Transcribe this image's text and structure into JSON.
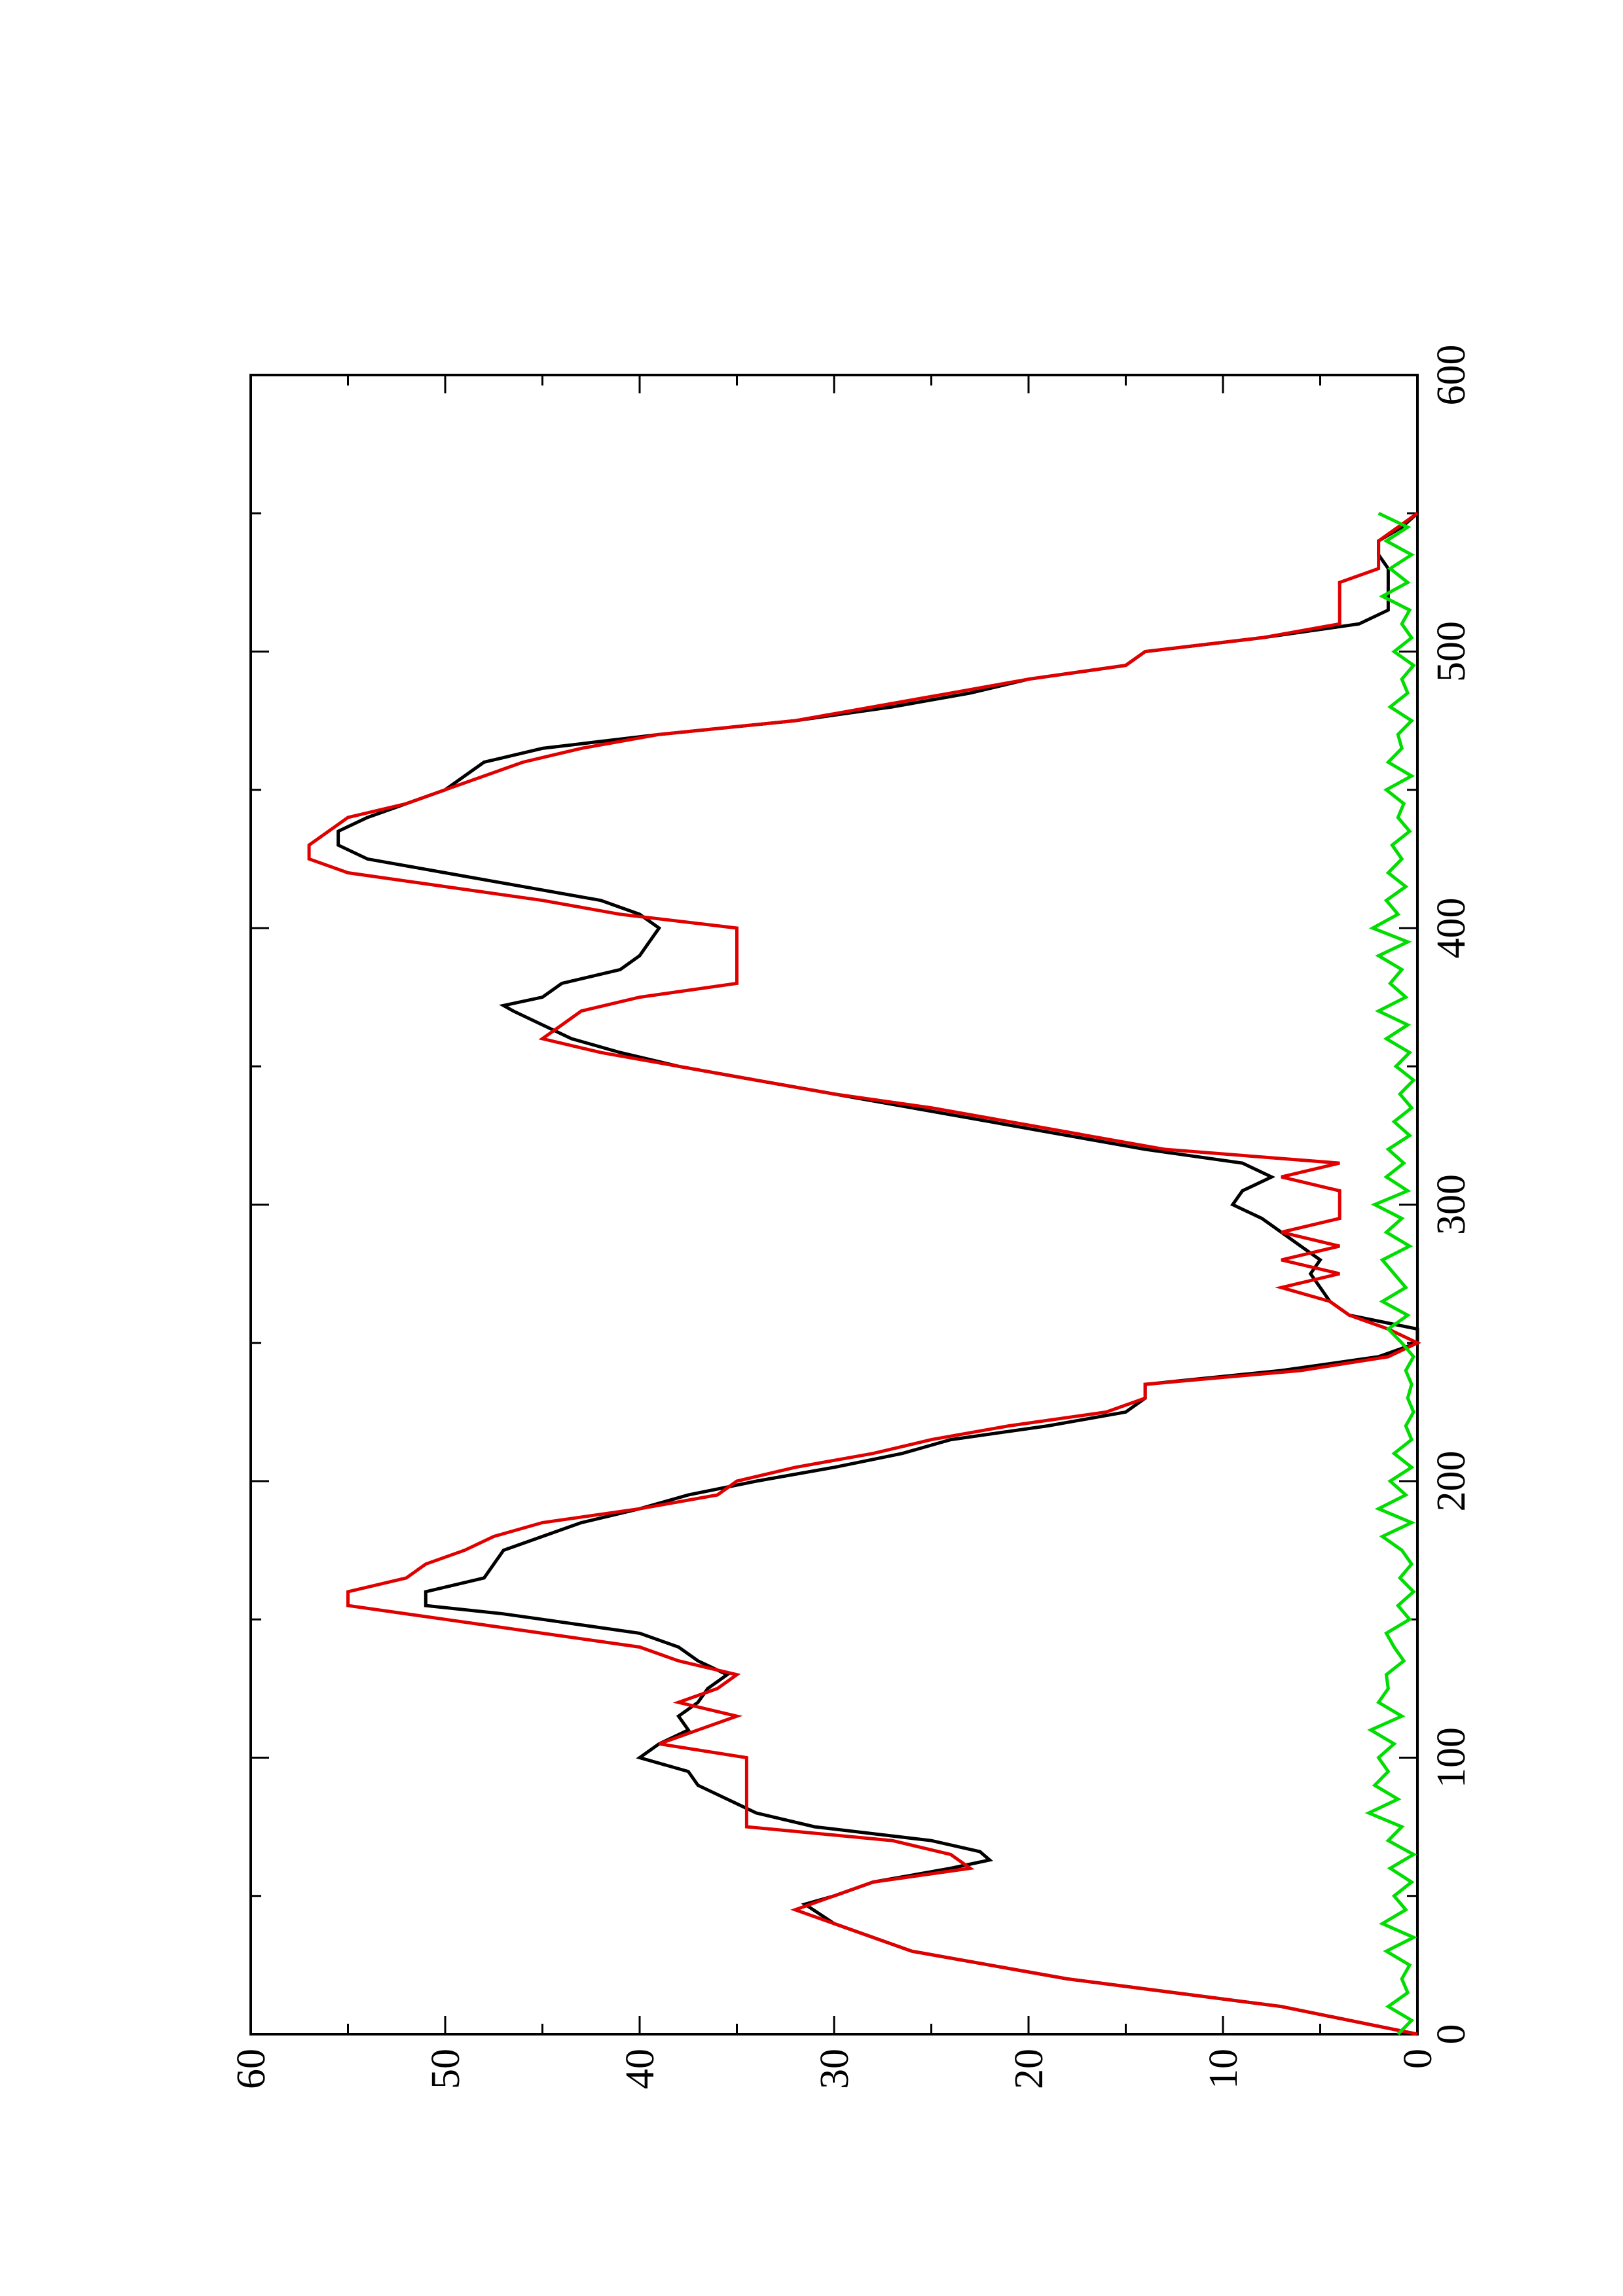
{
  "chart_data": {
    "type": "line",
    "title": "",
    "xlabel": "",
    "ylabel": "",
    "orientation": "rotated-90-counterclockwise",
    "xlim": [
      0,
      600
    ],
    "ylim": [
      0,
      60
    ],
    "x_ticks": [
      0,
      100,
      200,
      300,
      400,
      500,
      600
    ],
    "x_tick_labels": [
      "0",
      "100",
      "200",
      "300",
      "400",
      "500",
      "600"
    ],
    "x_minor_ticks": [
      50,
      150,
      250,
      350,
      450,
      550
    ],
    "y_ticks": [
      0,
      10,
      20,
      30,
      40,
      50,
      60
    ],
    "y_tick_labels": [
      "0",
      "10",
      "20",
      "30",
      "40",
      "50",
      "60"
    ],
    "y_minor_ticks": [
      5,
      15,
      25,
      35,
      45,
      55
    ],
    "grid": false,
    "legend": "none",
    "series": [
      {
        "color": "#000000",
        "x": [
          0,
          10,
          20,
          30,
          40,
          47,
          50,
          55,
          60,
          63,
          66,
          70,
          75,
          80,
          85,
          90,
          95,
          100,
          105,
          110,
          115,
          120,
          125,
          130,
          135,
          140,
          145,
          150,
          152,
          155,
          160,
          165,
          170,
          175,
          180,
          185,
          190,
          195,
          200,
          205,
          210,
          215,
          220,
          225,
          230,
          235,
          240,
          245,
          250,
          255,
          260,
          265,
          270,
          275,
          280,
          285,
          290,
          295,
          300,
          305,
          310,
          315,
          320,
          325,
          330,
          335,
          340,
          345,
          350,
          355,
          360,
          365,
          370,
          372,
          375,
          380,
          385,
          390,
          395,
          400,
          405,
          410,
          415,
          420,
          425,
          430,
          435,
          440,
          445,
          450,
          455,
          460,
          465,
          470,
          475,
          480,
          485,
          490,
          495,
          500,
          505,
          510,
          515,
          520,
          525,
          530,
          535,
          540,
          545,
          550
        ],
        "y": [
          0,
          7,
          18,
          26,
          30,
          31.5,
          30,
          28,
          24,
          22,
          22.5,
          25,
          31,
          34,
          35.5,
          37,
          37.5,
          40,
          39,
          37.5,
          38,
          37,
          36.5,
          35.5,
          37,
          38,
          40,
          45,
          47,
          51,
          51,
          48,
          47.5,
          47,
          45,
          43,
          40,
          37.5,
          34,
          30,
          26.5,
          24,
          19,
          15,
          14,
          14,
          7,
          2,
          0,
          0,
          3.5,
          4.5,
          5,
          5.5,
          5,
          6,
          7,
          8,
          9.5,
          9,
          7.5,
          9,
          14,
          18,
          22,
          26,
          30,
          34,
          38,
          41,
          43.5,
          45,
          46.5,
          47,
          45,
          44,
          41,
          40,
          39.5,
          39,
          40,
          42,
          46,
          50,
          54,
          55.5,
          55.5,
          54,
          52,
          50,
          49,
          48,
          45,
          39,
          32,
          27,
          23,
          20,
          15,
          14,
          8,
          3,
          1.5,
          1.5,
          1.5,
          1.5,
          2,
          2,
          0.8,
          0
        ]
      },
      {
        "color": "#e00000",
        "x": [
          0,
          10,
          20,
          30,
          40,
          45,
          50,
          55,
          60,
          65,
          70,
          75,
          80,
          85,
          90,
          95,
          100,
          105,
          110,
          115,
          120,
          125,
          130,
          135,
          140,
          145,
          150,
          155,
          160,
          165,
          170,
          175,
          180,
          185,
          190,
          195,
          200,
          205,
          210,
          215,
          220,
          225,
          230,
          235,
          240,
          245,
          250,
          255,
          260,
          265,
          270,
          275,
          280,
          285,
          290,
          295,
          300,
          305,
          310,
          315,
          320,
          325,
          330,
          335,
          340,
          345,
          350,
          355,
          360,
          365,
          370,
          375,
          380,
          385,
          390,
          395,
          400,
          405,
          410,
          415,
          420,
          425,
          430,
          435,
          440,
          445,
          450,
          455,
          460,
          465,
          470,
          475,
          480,
          485,
          490,
          495,
          500,
          505,
          510,
          515,
          520,
          525,
          530,
          535,
          540,
          545,
          550
        ],
        "y": [
          0,
          7,
          18,
          26,
          30,
          32,
          30,
          28,
          23,
          24,
          27,
          34.5,
          34.5,
          34.5,
          34.5,
          34.5,
          34.5,
          39,
          37,
          35,
          38,
          36,
          35,
          38,
          40,
          45,
          50,
          55,
          55,
          52,
          51,
          49,
          47.5,
          45,
          40,
          36,
          35,
          32,
          28,
          25,
          21,
          16,
          14,
          14,
          6,
          1.5,
          0,
          1.5,
          3.5,
          4.5,
          7,
          4,
          7,
          4,
          7,
          4,
          4,
          4,
          7,
          4,
          13,
          17,
          21,
          25,
          30,
          34,
          38,
          42,
          45,
          44,
          43,
          40,
          35,
          35,
          35,
          35,
          35,
          41,
          45,
          50,
          55,
          57,
          57,
          56,
          55,
          52,
          50,
          48,
          46,
          43,
          39,
          32,
          28,
          24,
          20,
          15,
          14,
          8,
          4,
          4,
          4,
          4,
          2,
          2,
          2,
          1,
          0
        ]
      },
      {
        "color": "#00dd00",
        "x": [
          0,
          5,
          10,
          15,
          20,
          25,
          30,
          35,
          40,
          45,
          50,
          55,
          60,
          65,
          70,
          75,
          80,
          85,
          90,
          95,
          100,
          105,
          110,
          115,
          120,
          125,
          130,
          135,
          140,
          145,
          150,
          155,
          160,
          165,
          170,
          175,
          180,
          185,
          190,
          195,
          200,
          205,
          210,
          215,
          220,
          225,
          230,
          235,
          240,
          245,
          250,
          255,
          260,
          265,
          270,
          275,
          280,
          285,
          290,
          295,
          300,
          305,
          310,
          315,
          320,
          325,
          330,
          335,
          340,
          345,
          350,
          355,
          360,
          365,
          370,
          375,
          380,
          385,
          390,
          395,
          400,
          405,
          410,
          415,
          420,
          425,
          430,
          435,
          440,
          445,
          450,
          455,
          460,
          465,
          470,
          475,
          480,
          485,
          490,
          495,
          500,
          505,
          510,
          515,
          520,
          525,
          530,
          535,
          540,
          545,
          550
        ],
        "y": [
          1,
          0.3,
          1.5,
          0.5,
          0.8,
          0.4,
          1.6,
          0.2,
          1.8,
          0.6,
          1.2,
          0.3,
          1.4,
          0.2,
          1.5,
          0.8,
          2.5,
          1.0,
          2.2,
          1.5,
          2.0,
          1.2,
          2.4,
          0.8,
          2.0,
          1.5,
          1.6,
          0.7,
          1.2,
          1.6,
          0.4,
          1.0,
          0.2,
          0.9,
          0.3,
          0.8,
          1.8,
          0.3,
          2.0,
          0.6,
          1.4,
          0.3,
          1.2,
          0.3,
          0.6,
          0.2,
          0.5,
          0.3,
          0.6,
          0.2,
          0.8,
          1.5,
          0.5,
          1.8,
          0.6,
          1.2,
          1.8,
          0.4,
          1.6,
          0.8,
          2.2,
          0.5,
          1.6,
          0.7,
          1.5,
          0.4,
          1.2,
          0.3,
          0.9,
          0.2,
          1.1,
          0.4,
          1.6,
          0.5,
          2.0,
          0.6,
          1.4,
          0.8,
          2.0,
          0.5,
          2.3,
          1.0,
          1.6,
          0.6,
          1.5,
          0.8,
          1.3,
          0.4,
          1.0,
          0.7,
          1.6,
          0.3,
          1.5,
          0.8,
          1.0,
          0.3,
          1.4,
          0.5,
          0.8,
          0.2,
          1.2,
          0.3,
          0.8,
          0.4,
          1.8,
          0.5,
          1.4,
          0.3,
          1.6,
          0.5,
          2.0
        ]
      }
    ]
  }
}
